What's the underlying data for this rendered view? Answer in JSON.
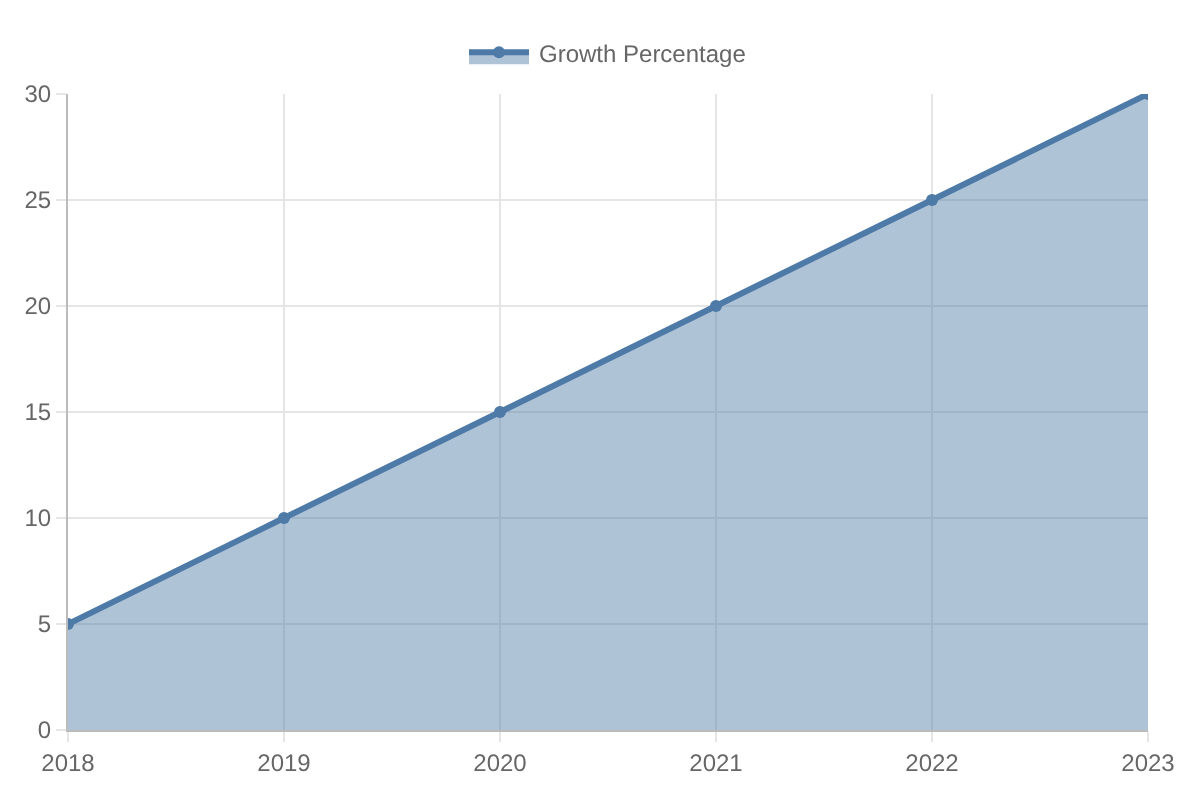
{
  "chart_data": {
    "type": "area",
    "categories": [
      "2018",
      "2019",
      "2020",
      "2021",
      "2022",
      "2023"
    ],
    "series": [
      {
        "name": "Growth Percentage",
        "color": "#4e7aa7",
        "values": [
          5,
          10,
          15,
          20,
          25,
          30
        ]
      }
    ],
    "ylim": [
      0,
      30
    ],
    "yticks": [
      0,
      5,
      10,
      15,
      20,
      25,
      30
    ],
    "grid": true,
    "legend": "top",
    "marker": "circle",
    "line_style": "solid"
  }
}
